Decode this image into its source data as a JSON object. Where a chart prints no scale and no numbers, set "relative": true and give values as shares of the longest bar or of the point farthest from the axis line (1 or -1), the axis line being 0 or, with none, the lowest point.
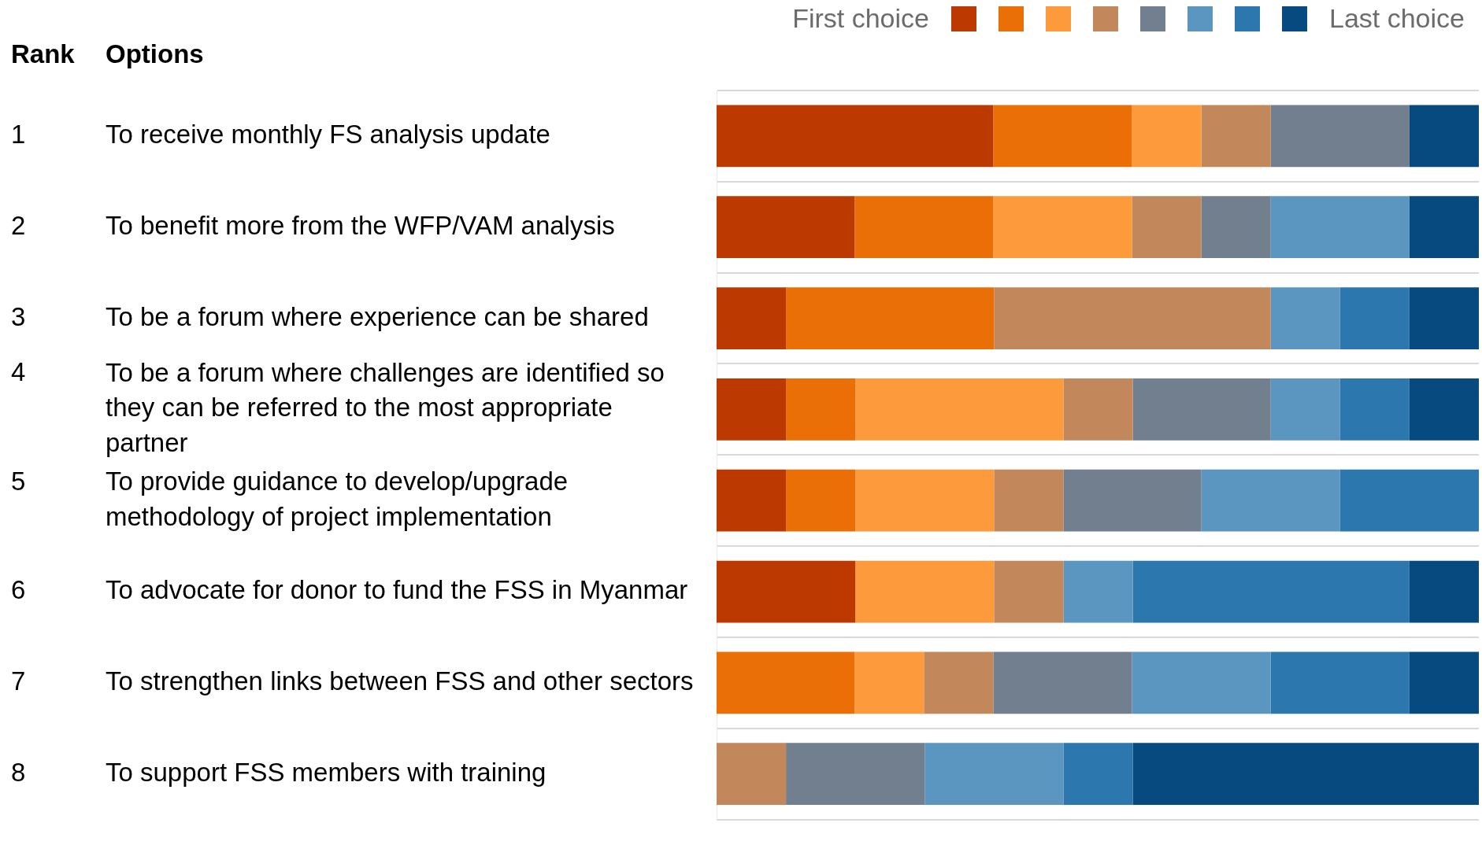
{
  "chart_data": {
    "type": "bar",
    "orientation": "horizontal",
    "stacked": true,
    "relative": true,
    "grid": "y",
    "categories": [
      "To receive monthly FS analysis update",
      "To benefit more from the WFP/VAM analysis",
      "To be a forum where experience can be shared",
      "To be a forum where challenges are identified so they can be referred to the most appropriate partner",
      "To provide guidance to develop/upgrade methodology of project implementation",
      "To advocate for donor to fund the FSS in Myanmar",
      "To strengthen links between FSS and other sectors",
      "To support FSS members with training"
    ],
    "series": [
      {
        "color": "#bc3a02",
        "values": [
          0.363,
          0.181,
          0.091,
          0.091,
          0.091,
          0.182,
          0,
          0
        ]
      },
      {
        "color": "#e96f06",
        "values": [
          0.182,
          0.182,
          0.273,
          0.091,
          0.091,
          0,
          0.181,
          0
        ]
      },
      {
        "color": "#fd9a3c",
        "values": [
          0.091,
          0.182,
          0,
          0.273,
          0.182,
          0.182,
          0.091,
          0
        ]
      },
      {
        "color": "#c2875a",
        "values": [
          0.091,
          0.091,
          0.363,
          0.091,
          0.091,
          0.091,
          0.091,
          0.091
        ]
      },
      {
        "color": "#717f8f",
        "values": [
          0.182,
          0.091,
          0,
          0.181,
          0.181,
          0,
          0.182,
          0.182
        ]
      },
      {
        "color": "#5a96c0",
        "values": [
          0,
          0.182,
          0.091,
          0.091,
          0.182,
          0.091,
          0.182,
          0.182
        ]
      },
      {
        "color": "#2b77ae",
        "values": [
          0,
          0,
          0.091,
          0.091,
          0.182,
          0.363,
          0.182,
          0.091
        ]
      },
      {
        "color": "#064a80",
        "values": [
          0.091,
          0.091,
          0.091,
          0.091,
          0,
          0.091,
          0.091,
          0.454
        ]
      }
    ],
    "annotations": [
      "Rank",
      "Options",
      "First choice",
      "Last choice",
      "1",
      "2",
      "3",
      "4",
      "5",
      "6",
      "7",
      "8"
    ]
  }
}
